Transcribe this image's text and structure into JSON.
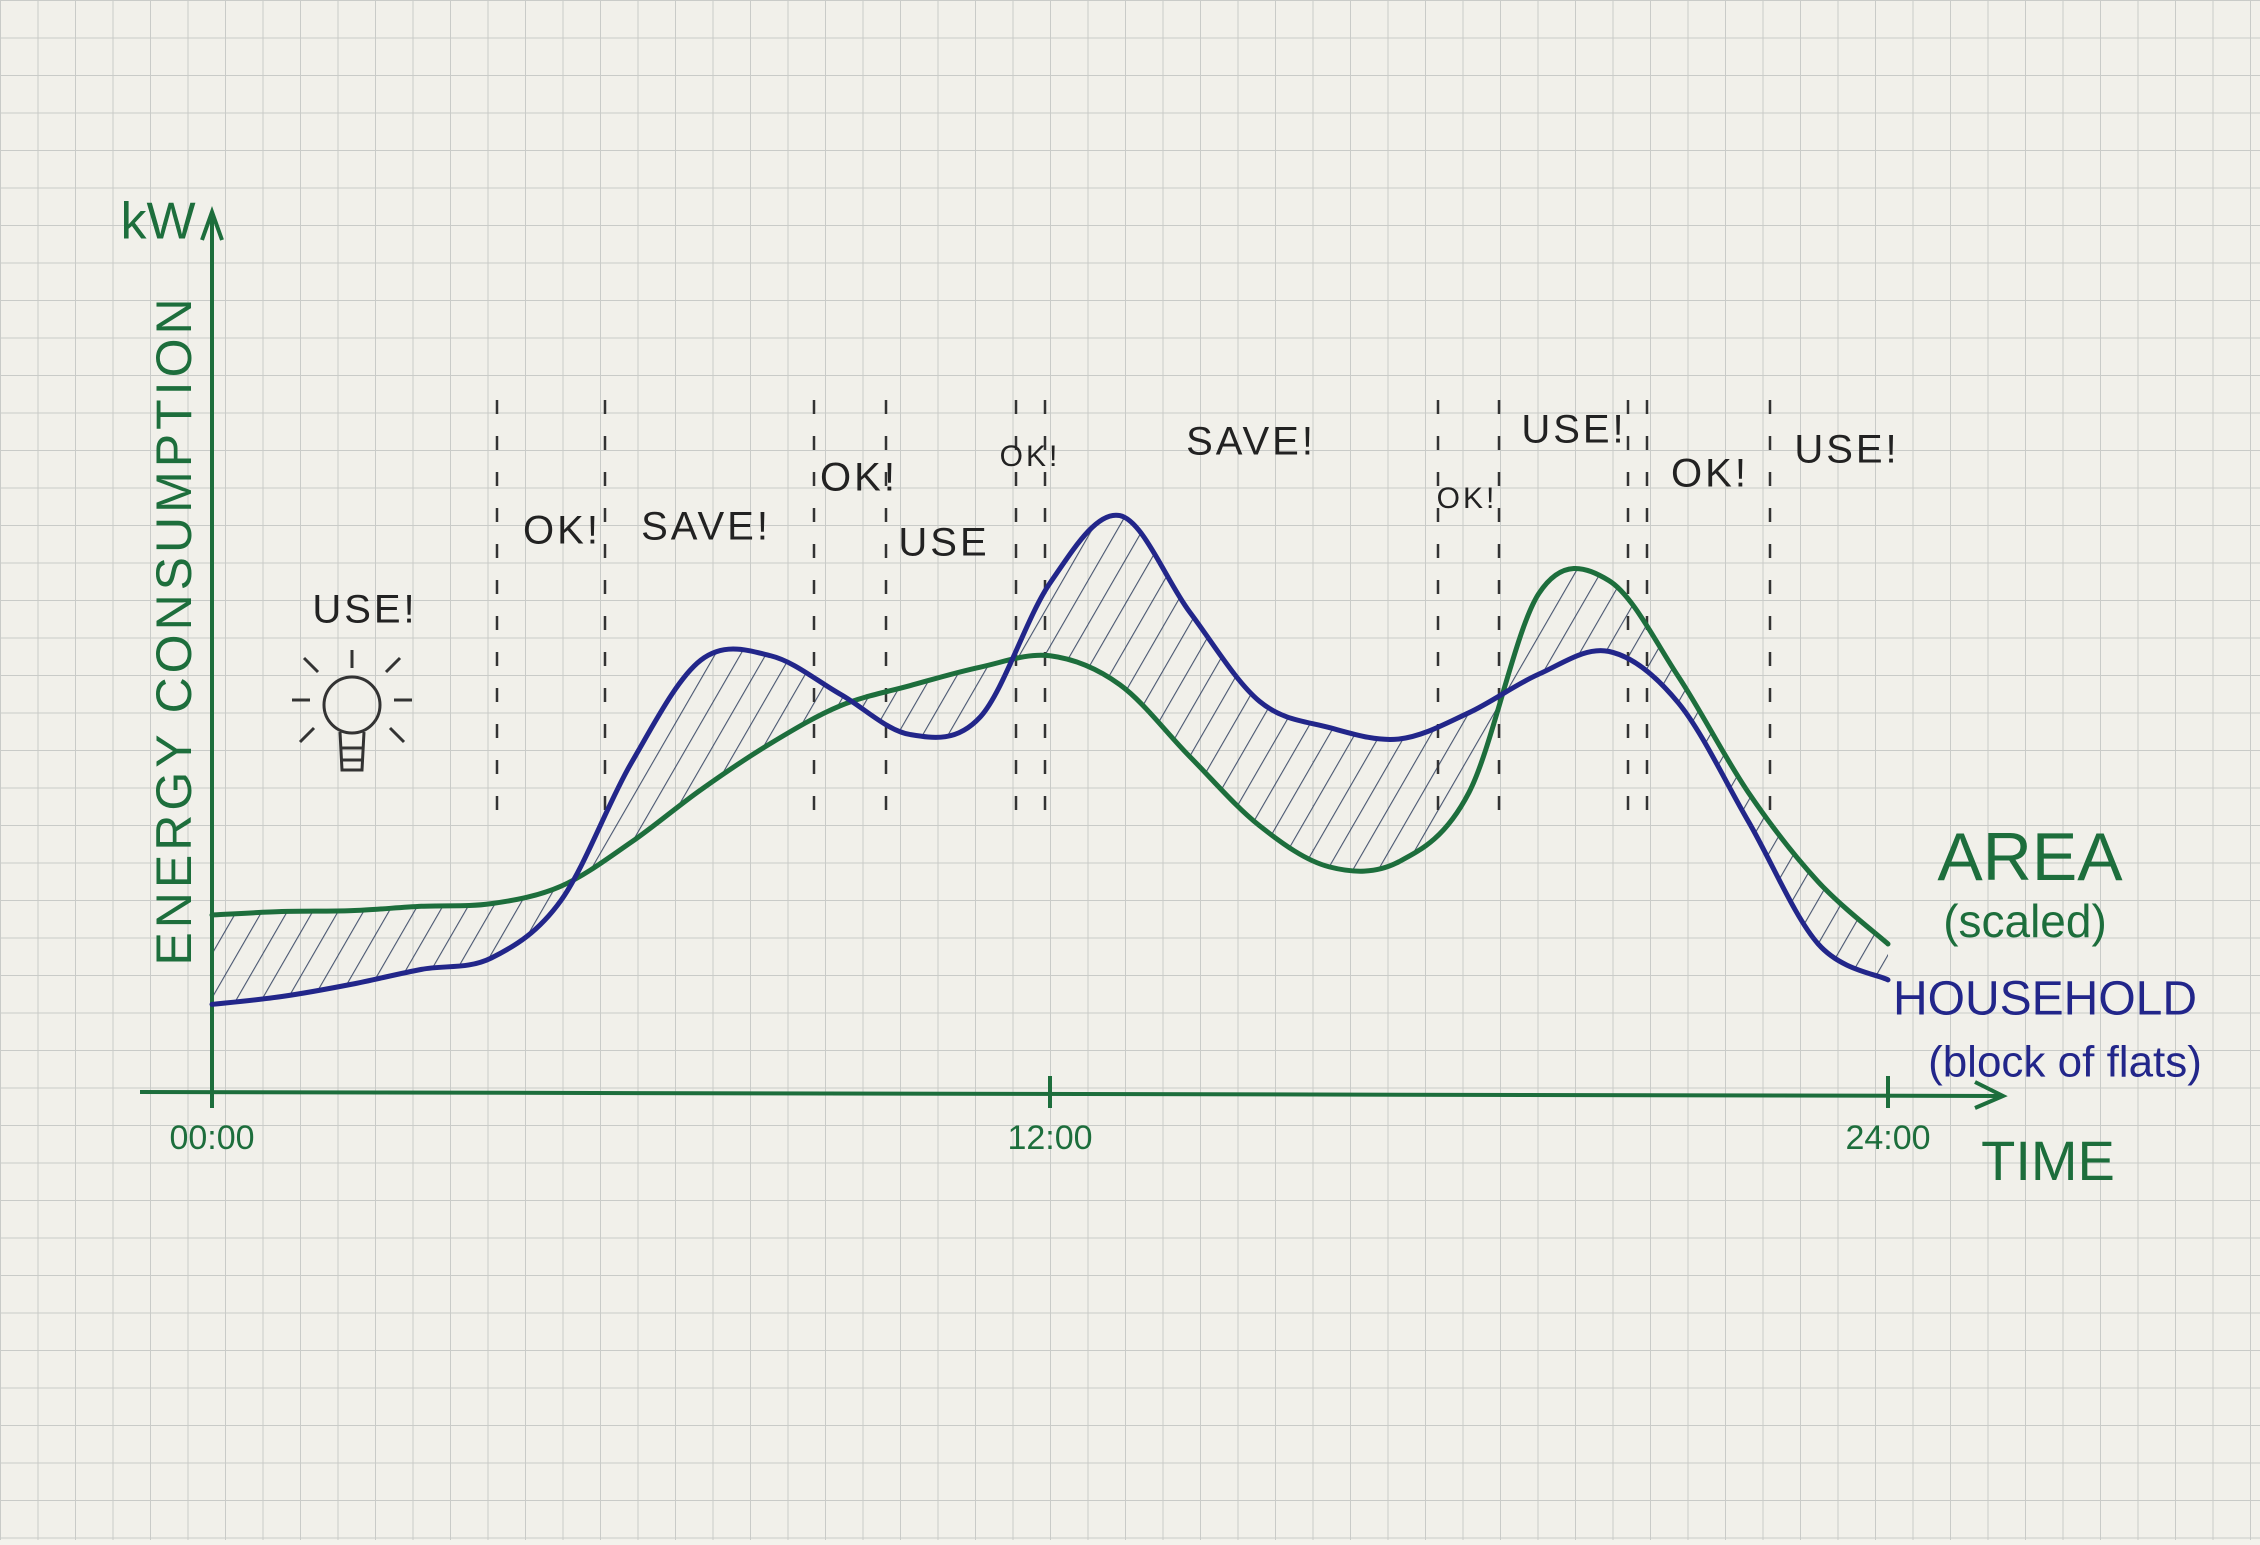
{
  "chart_data": {
    "type": "line",
    "y_unit": "kW",
    "y_label": "ENERGY CONSUMPTION",
    "x_label": "TIME",
    "x": [
      0,
      1,
      2,
      3,
      4,
      5,
      6,
      7,
      8,
      9,
      10,
      11,
      12,
      13,
      14,
      15,
      16,
      17,
      18,
      19,
      20,
      21,
      22,
      23,
      24
    ],
    "xlim": [
      0,
      24
    ],
    "xticks": [
      {
        "value": 0,
        "label": "00:00"
      },
      {
        "value": 12,
        "label": "12:00"
      },
      {
        "value": 24,
        "label": "24:00"
      }
    ],
    "ylim": [
      0,
      100
    ],
    "series": [
      {
        "name": "AREA",
        "note": "(scaled)",
        "color": "#1d6e3c",
        "values": [
          20.2,
          20.6,
          20.7,
          21.2,
          21.5,
          23.5,
          28.5,
          34.5,
          39.8,
          44.1,
          46.4,
          48.5,
          49.8,
          46.5,
          38.3,
          30.4,
          25.7,
          26.3,
          34.2,
          56.9,
          58.4,
          47.4,
          34.2,
          24.0,
          16.9
        ]
      },
      {
        "name": "HOUSEHOLD",
        "note": "(block of flats)",
        "color": "#22268a",
        "values": [
          10.0,
          10.9,
          12.3,
          14.0,
          15.3,
          21.9,
          37.5,
          49.3,
          49.8,
          45.4,
          40.8,
          42.8,
          58.1,
          65.8,
          54.8,
          44.6,
          41.6,
          40.3,
          43.3,
          47.7,
          50.3,
          44.4,
          30.9,
          16.9,
          12.8
        ]
      }
    ],
    "annotations": [
      "USE!",
      "OK!",
      "SAVE!",
      "OK!",
      "USE",
      "OK!",
      "SAVE!",
      "OK!",
      "USE!",
      "OK!",
      "USE!"
    ]
  }
}
